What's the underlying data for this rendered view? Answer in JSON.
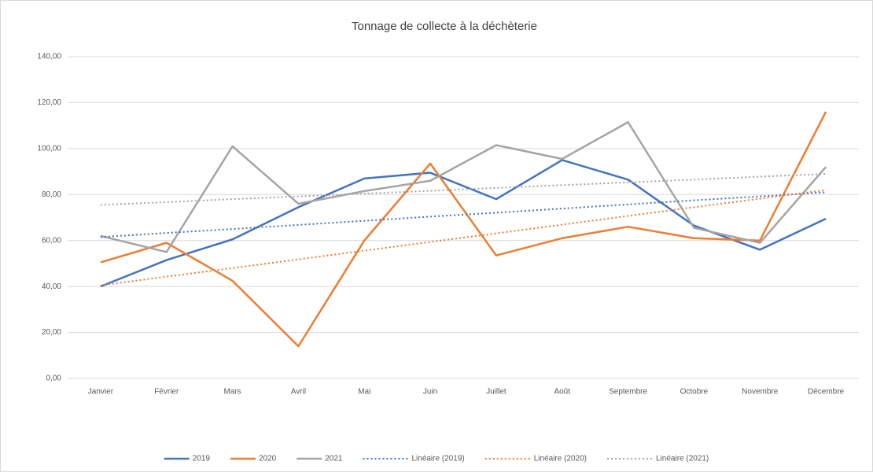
{
  "chart_data": {
    "type": "line",
    "title": "Tonnage de collecte à la déchèterie",
    "categories": [
      "Janvier",
      "Février",
      "Mars",
      "Avril",
      "Mai",
      "Juin",
      "Juillet",
      "Août",
      "Septembre",
      "Octobre",
      "Novembre",
      "Décembre"
    ],
    "ylim": [
      0,
      140
    ],
    "yticks": [
      {
        "value": 0,
        "label": "0,00"
      },
      {
        "value": 20,
        "label": "20,00"
      },
      {
        "value": 40,
        "label": "40,00"
      },
      {
        "value": 60,
        "label": "60,00"
      },
      {
        "value": 80,
        "label": "80,00"
      },
      {
        "value": 100,
        "label": "100,00"
      },
      {
        "value": 120,
        "label": "120,00"
      },
      {
        "value": 140,
        "label": "140,00"
      }
    ],
    "grid": true,
    "legend": "bottom",
    "series": [
      {
        "name": "2019",
        "color": "#4472c4",
        "style": "solid",
        "values": [
          40,
          51.5,
          60.5,
          74.5,
          87,
          89.5,
          78,
          95,
          86.5,
          66.5,
          56,
          69.5
        ]
      },
      {
        "name": "2020",
        "color": "#ed7d31",
        "style": "solid",
        "values": [
          50.5,
          59,
          42.5,
          14,
          60,
          93.5,
          53.5,
          61,
          66,
          61,
          60,
          116
        ]
      },
      {
        "name": "2021",
        "color": "#a5a5a5",
        "style": "solid",
        "values": [
          62,
          55,
          101,
          76,
          81.5,
          86,
          101.5,
          95.5,
          111.5,
          65.5,
          59,
          92
        ]
      },
      {
        "name": "Linéaire (2019)",
        "color": "#4472c4",
        "style": "dotted",
        "values": [
          61.5,
          63.3,
          65.0,
          66.8,
          68.6,
          70.4,
          72.1,
          73.9,
          75.7,
          77.5,
          79.2,
          81
        ]
      },
      {
        "name": "Linéaire (2020)",
        "color": "#ed7d31",
        "style": "dotted",
        "values": [
          40.5,
          44.3,
          48.0,
          51.8,
          55.6,
          59.4,
          63.1,
          66.9,
          70.7,
          74.5,
          78.2,
          82
        ]
      },
      {
        "name": "Linéaire (2021)",
        "color": "#a5a5a5",
        "style": "dotted",
        "values": [
          75.5,
          76.7,
          78.0,
          79.2,
          80.4,
          81.6,
          82.9,
          84.1,
          85.3,
          86.5,
          87.8,
          89
        ]
      }
    ]
  }
}
